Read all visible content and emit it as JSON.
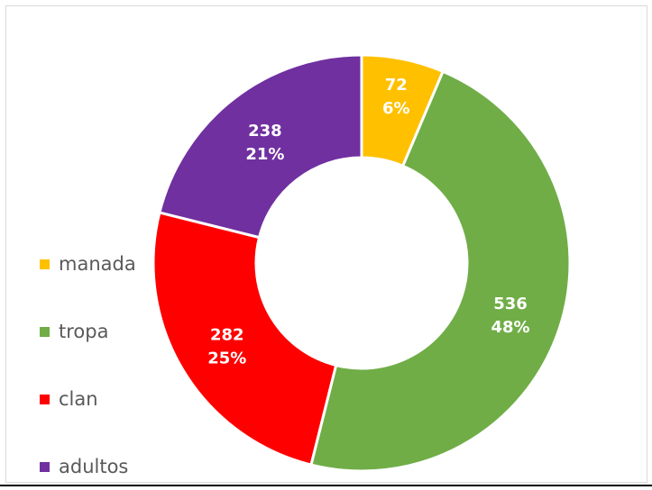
{
  "chart_data": {
    "type": "pie",
    "title": "",
    "donut": true,
    "legend_position": "left",
    "slices": [
      {
        "label": "manada",
        "value": 72,
        "percent": "6%",
        "color": "#ffc000"
      },
      {
        "label": "tropa",
        "value": 536,
        "percent": "48%",
        "color": "#70ad47"
      },
      {
        "label": "clan",
        "value": 282,
        "percent": "25%",
        "color": "#ff0000"
      },
      {
        "label": "adultos",
        "value": 238,
        "percent": "21%",
        "color": "#7030a0"
      }
    ]
  }
}
